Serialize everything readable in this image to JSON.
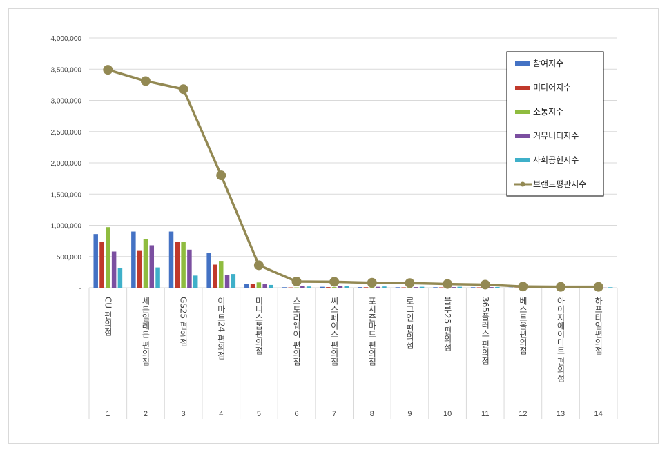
{
  "chart_data": {
    "type": "bar",
    "categories": [
      "CU 편의점",
      "세븐일레븐 편의점",
      "GS25 편의점",
      "이마트24 편의점",
      "미니스톱편의점",
      "스토리웨이 편의점",
      "씨스페이스 편의점",
      "포시즌마트 편의점",
      "로그인 편의점",
      "블루25 편의점",
      "365플러스 편의점",
      "베스트올편의점",
      "아이지에이마트 편의점",
      "하프타임편의점"
    ],
    "ranks": [
      "1",
      "2",
      "3",
      "4",
      "5",
      "6",
      "7",
      "8",
      "9",
      "10",
      "11",
      "12",
      "13",
      "14"
    ],
    "series": [
      {
        "name": "참여지수",
        "kind": "bar",
        "color": "#4472c4",
        "values": [
          860000,
          900000,
          900000,
          560000,
          65000,
          8000,
          15000,
          10000,
          8000,
          8000,
          8000,
          3000,
          2000,
          2000
        ]
      },
      {
        "name": "미디어지수",
        "kind": "bar",
        "color": "#c0392b",
        "values": [
          730000,
          590000,
          740000,
          370000,
          60000,
          5000,
          10000,
          8000,
          6000,
          6000,
          6000,
          2000,
          1000,
          1000
        ]
      },
      {
        "name": "소통지수",
        "kind": "bar",
        "color": "#8fbc3f",
        "values": [
          970000,
          780000,
          730000,
          430000,
          85000,
          5000,
          10000,
          8000,
          6000,
          6000,
          6000,
          2000,
          1000,
          1000
        ]
      },
      {
        "name": "커뮤니티지수",
        "kind": "bar",
        "color": "#7b4fa0",
        "values": [
          580000,
          680000,
          610000,
          210000,
          55000,
          25000,
          25000,
          15000,
          10000,
          10000,
          10000,
          3000,
          2000,
          2000
        ]
      },
      {
        "name": "사회공헌지수",
        "kind": "bar",
        "color": "#3fb0c9",
        "values": [
          310000,
          325000,
          195000,
          220000,
          45000,
          20000,
          25000,
          20000,
          15000,
          15000,
          12000,
          8000,
          8000,
          8000
        ]
      },
      {
        "name": "브랜드평판지수",
        "kind": "line",
        "color": "#938953",
        "values": [
          3490000,
          3310000,
          3180000,
          1800000,
          360000,
          100000,
          95000,
          80000,
          75000,
          60000,
          50000,
          20000,
          15000,
          15000
        ]
      }
    ],
    "yticks": [
      "4,000,000",
      "3,500,000",
      "3,000,000",
      "2,500,000",
      "2,000,000",
      "1,500,000",
      "1,000,000",
      "500,000",
      "-"
    ],
    "ylim": [
      0,
      4000000
    ],
    "legend_position": "top-right",
    "grid": true
  }
}
